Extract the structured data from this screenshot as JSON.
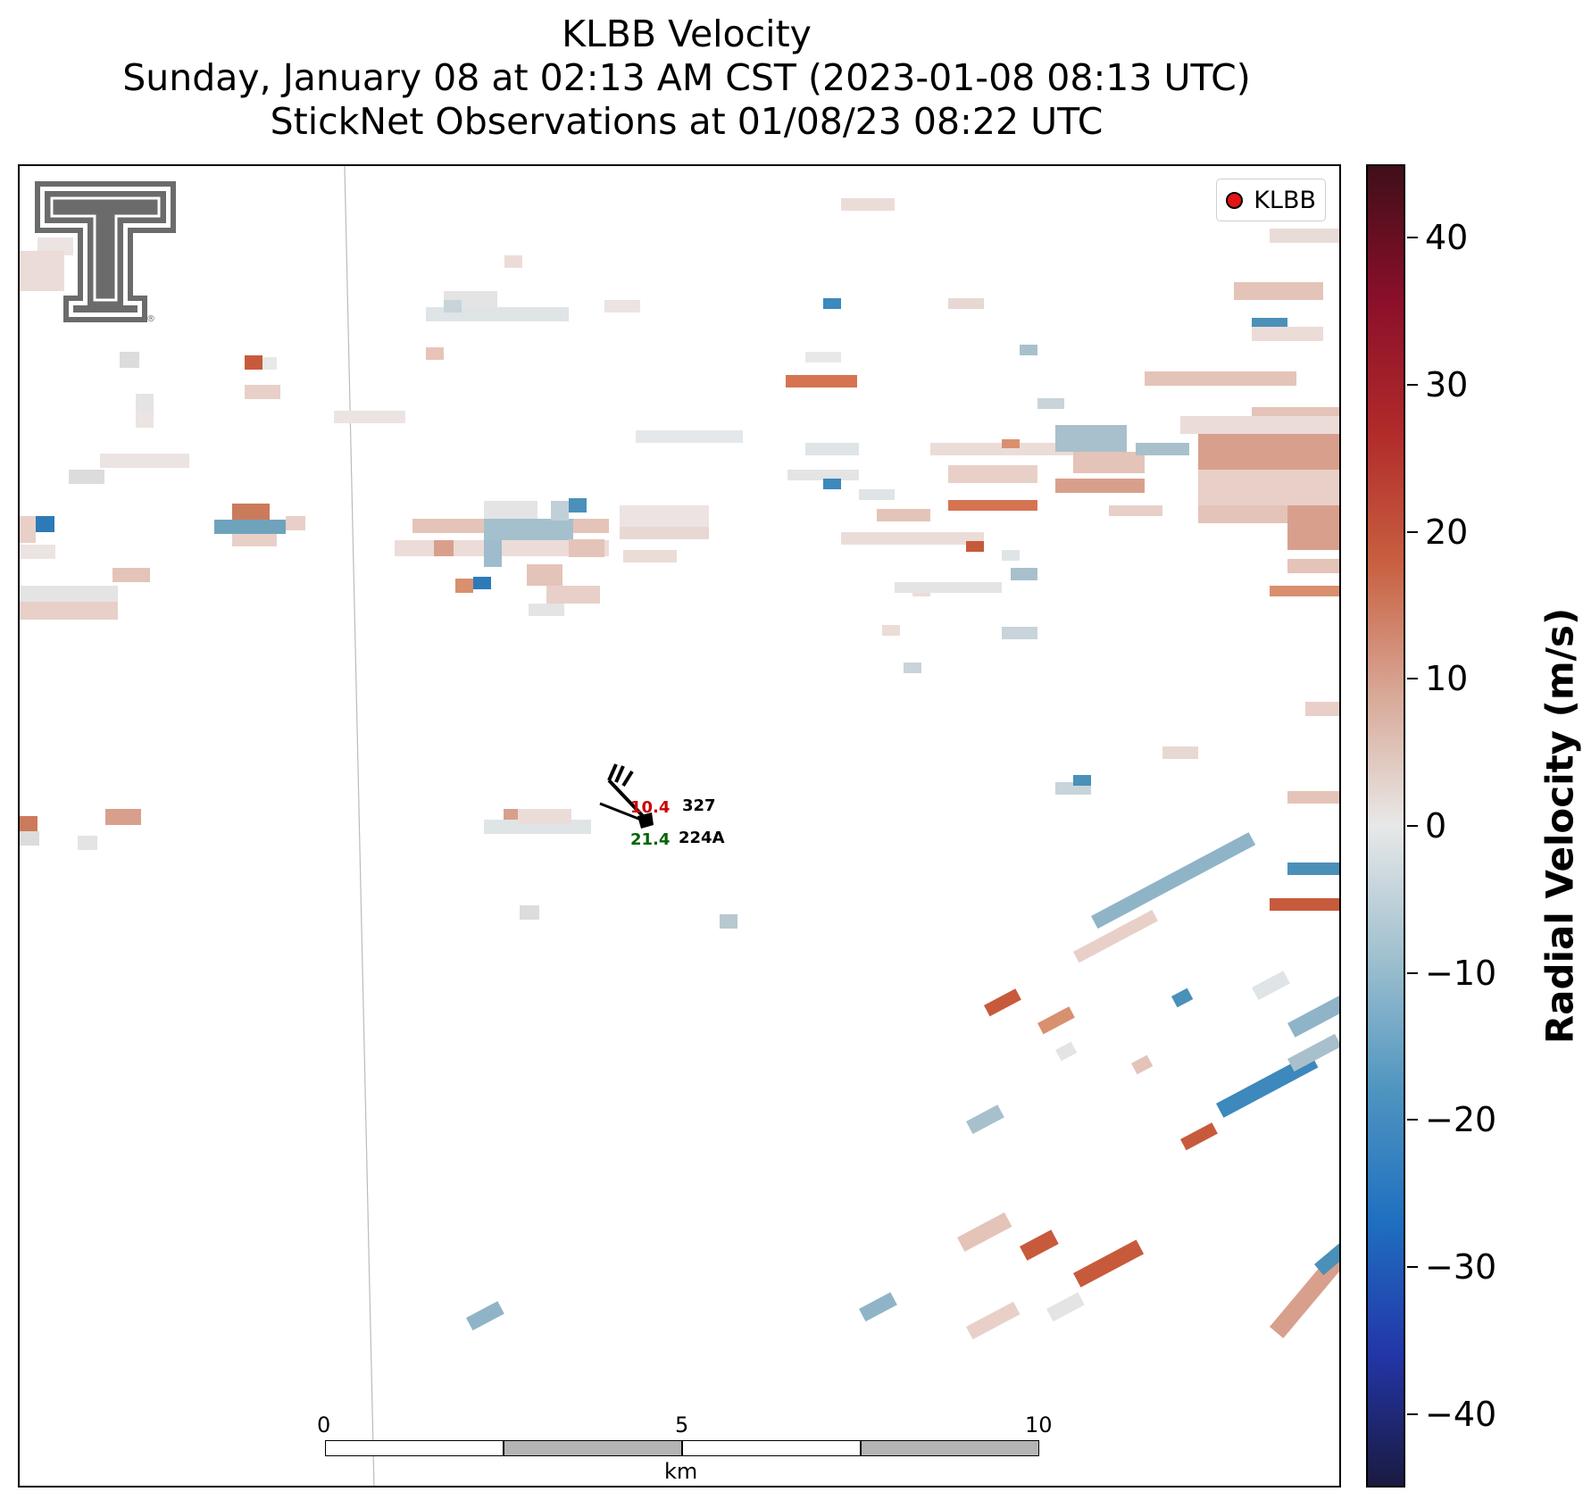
{
  "titles": {
    "line1": "KLBB Velocity",
    "line2": "Sunday, January 08 at 02:13 AM CST (2023-01-08 08:13 UTC)",
    "line3": "StickNet Observations at 01/08/23 08:22 UTC"
  },
  "legend": {
    "label": "KLBB",
    "marker_color": "#e41414"
  },
  "station": {
    "id1": "327",
    "id2": "224A",
    "temp": "10.4",
    "dewpoint": "21.4",
    "temp_color": "#cc0000",
    "dewpoint_color": "#006400"
  },
  "scalebar": {
    "ticks": [
      "0",
      "5",
      "10"
    ],
    "unit": "km"
  },
  "colorbar": {
    "label": "Radial Velocity (m/s)",
    "min": -45,
    "max": 45,
    "ticks": [
      "40",
      "30",
      "20",
      "10",
      "0",
      "−10",
      "−20",
      "−30",
      "−40"
    ],
    "tick_values": [
      40,
      30,
      20,
      10,
      0,
      -10,
      -20,
      -30,
      -40
    ],
    "colors": [
      "#1a1a40",
      "#2336a8",
      "#1f6fc0",
      "#4f95c0",
      "#9fc0cf",
      "#e8e8e8",
      "#d8a896",
      "#c85f40",
      "#b02a2a",
      "#8a0f2a",
      "#3f0f19"
    ]
  },
  "logo": {
    "name": "texas-tech-double-t-logo"
  }
}
